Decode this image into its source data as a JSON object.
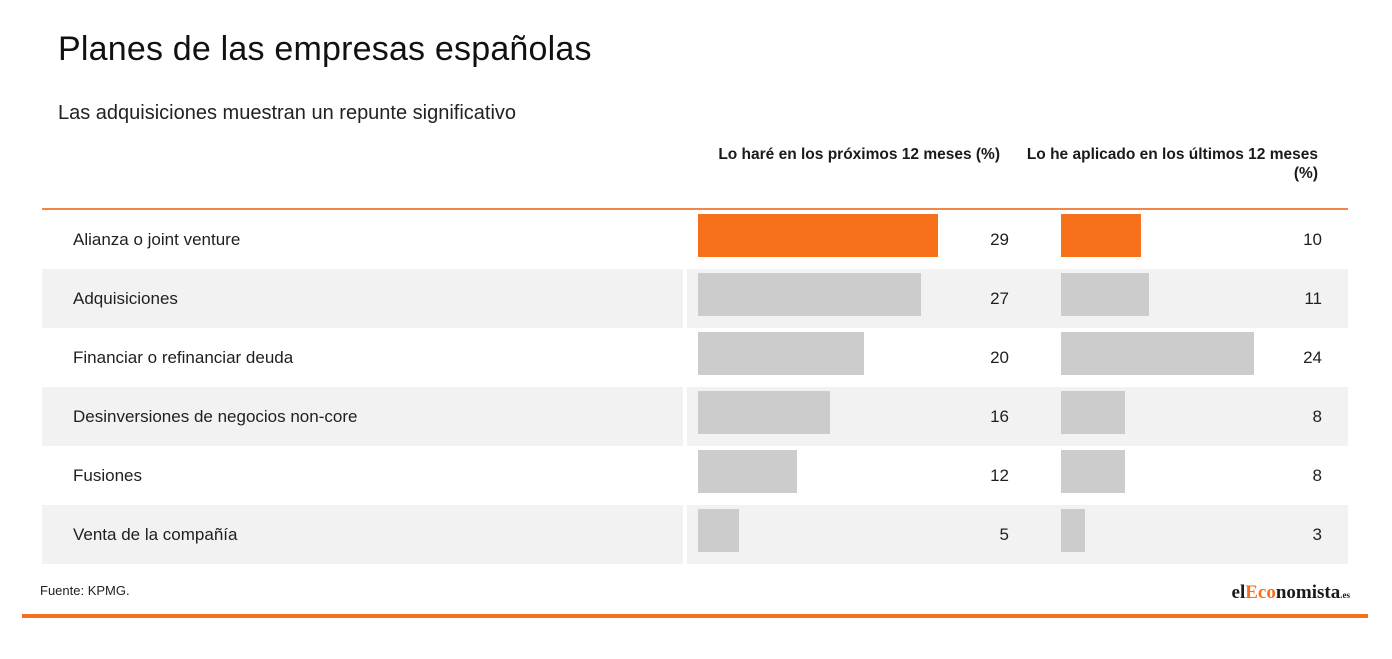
{
  "colors": {
    "accent": "#f7701b",
    "bar_default": "#cccccc",
    "row_alt_bg": "#f2f2f2"
  },
  "chart_data": {
    "type": "table",
    "title": "Planes de las empresas españolas",
    "subtitle": "Las adquisiciones muestran un repunte significativo",
    "columns": [
      "Lo haré en los próximos 12 meses (%)",
      "Lo he aplicado en los últimos 12 meses (%)"
    ],
    "categories": [
      "Alianza o joint venture",
      "Adquisiciones",
      "Financiar o refinanciar deuda",
      "Desinversiones de negocios non-core",
      "Fusiones",
      "Venta de la compañía"
    ],
    "series": [
      {
        "name": "Lo haré en los próximos 12 meses (%)",
        "values": [
          29,
          27,
          20,
          16,
          12,
          5
        ]
      },
      {
        "name": "Lo he aplicado en los últimos 12 meses (%)",
        "values": [
          10,
          11,
          24,
          8,
          8,
          3
        ]
      }
    ],
    "highlighted_category": "Alianza o joint venture",
    "source": "Fuente: KPMG."
  },
  "logo": {
    "part1": "el",
    "part2": "Eco",
    "part3": "nomista",
    "part4": ".es"
  }
}
